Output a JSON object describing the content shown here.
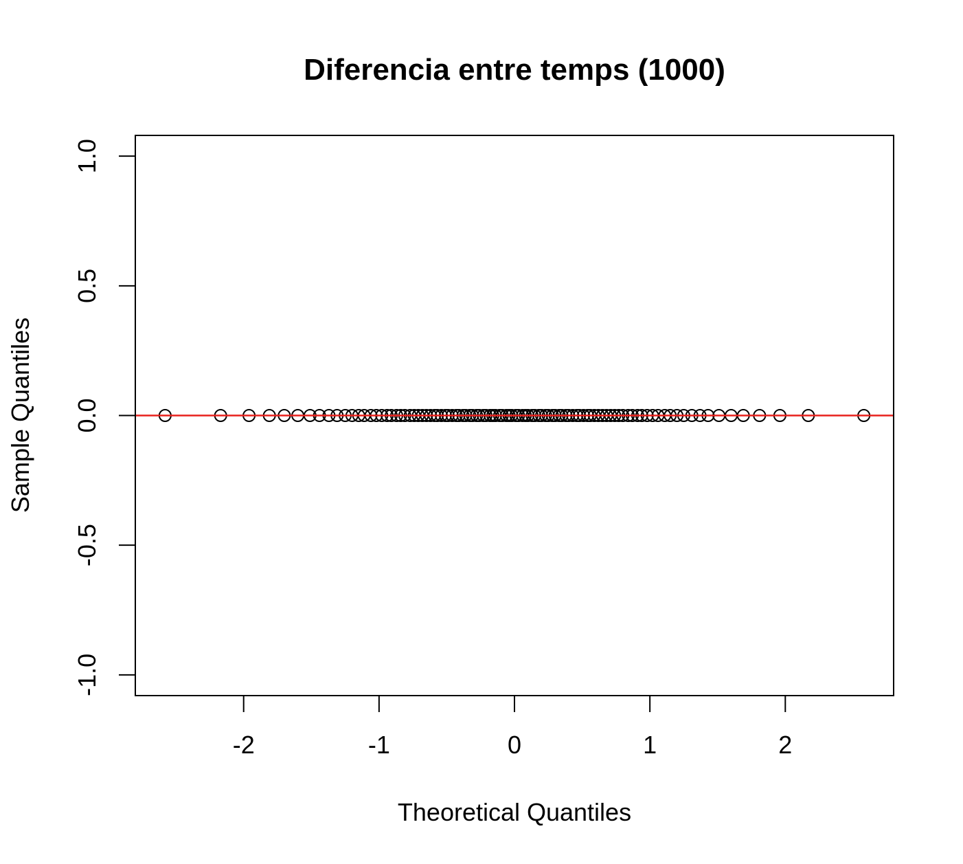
{
  "chart_data": {
    "type": "scatter",
    "title": "Diferencia entre temps (1000)",
    "xlabel": "Theoretical Quantiles",
    "ylabel": "Sample Quantiles",
    "xlim": [
      -2.8,
      2.8
    ],
    "ylim": [
      -1.08,
      1.08
    ],
    "xticks": [
      -2,
      -1,
      0,
      1,
      2
    ],
    "xtick_labels": [
      "-2",
      "-1",
      "0",
      "1",
      "2"
    ],
    "yticks": [
      -1.0,
      -0.5,
      0.0,
      0.5,
      1.0
    ],
    "ytick_labels": [
      "-1.0",
      "-0.5",
      "0.0",
      "0.5",
      "1.0"
    ],
    "grid": false,
    "legend": "none",
    "point_color": "#000000",
    "line_color": "#e8201c",
    "series": [
      {
        "x": [
          -2.58,
          -2.17,
          -1.96,
          -1.81,
          -1.7,
          -1.6,
          -1.51,
          -1.44,
          -1.37,
          -1.31,
          -1.25,
          -1.2,
          -1.15,
          -1.11,
          -1.06,
          -1.02,
          -0.98,
          -0.94,
          -0.91,
          -0.87,
          -0.84,
          -0.81,
          -0.77,
          -0.74,
          -0.71,
          -0.68,
          -0.65,
          -0.62,
          -0.59,
          -0.57,
          -0.54,
          -0.51,
          -0.49,
          -0.46,
          -0.43,
          -0.41,
          -0.38,
          -0.36,
          -0.33,
          -0.31,
          -0.28,
          -0.26,
          -0.23,
          -0.21,
          -0.18,
          -0.16,
          -0.14,
          -0.11,
          -0.09,
          -0.06,
          -0.04,
          -0.02,
          0.01,
          0.03,
          0.06,
          0.08,
          0.1,
          0.13,
          0.15,
          0.18,
          0.2,
          0.23,
          0.25,
          0.28,
          0.3,
          0.33,
          0.35,
          0.38,
          0.4,
          0.43,
          0.46,
          0.48,
          0.51,
          0.54,
          0.56,
          0.59,
          0.62,
          0.65,
          0.68,
          0.71,
          0.74,
          0.77,
          0.8,
          0.84,
          0.87,
          0.91,
          0.94,
          0.98,
          1.02,
          1.06,
          1.11,
          1.15,
          1.2,
          1.25,
          1.31,
          1.37,
          1.43,
          1.51,
          1.6,
          1.69,
          1.81,
          1.96,
          2.17,
          2.58
        ],
        "y": [
          0,
          0,
          0,
          0,
          0,
          0,
          0,
          0,
          0,
          0,
          0,
          0,
          0,
          0,
          0,
          0,
          0,
          0,
          0,
          0,
          0,
          0,
          0,
          0,
          0,
          0,
          0,
          0,
          0,
          0,
          0,
          0,
          0,
          0,
          0,
          0,
          0,
          0,
          0,
          0,
          0,
          0,
          0,
          0,
          0,
          0,
          0,
          0,
          0,
          0,
          0,
          0,
          0,
          0,
          0,
          0,
          0,
          0,
          0,
          0,
          0,
          0,
          0,
          0,
          0,
          0,
          0,
          0,
          0,
          0,
          0,
          0,
          0,
          0,
          0,
          0,
          0,
          0,
          0,
          0,
          0,
          0,
          0,
          0,
          0,
          0,
          0,
          0,
          0,
          0,
          0,
          0,
          0,
          0,
          0,
          0,
          0,
          0,
          0,
          0,
          0,
          0,
          0,
          0
        ]
      }
    ],
    "reference_line": {
      "intercept": 0,
      "slope": 0
    }
  }
}
